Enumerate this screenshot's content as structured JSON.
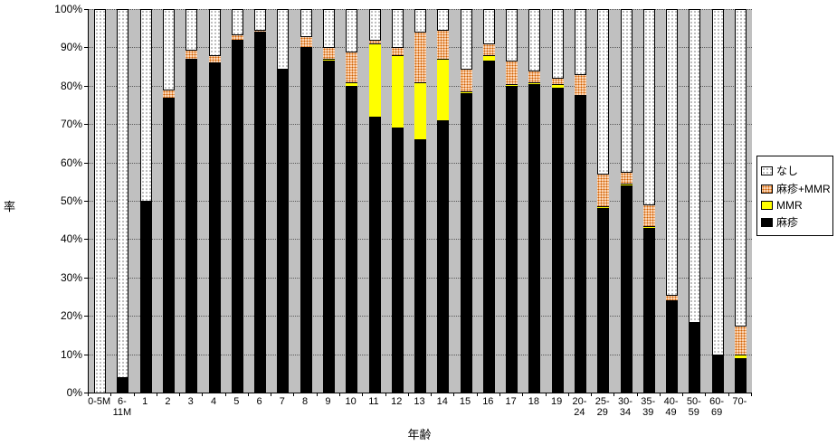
{
  "chart_data": {
    "type": "bar",
    "stacked": true,
    "percent": true,
    "xlabel": "年齢",
    "ylabel": "率",
    "ylim": [
      0,
      100
    ],
    "ytick_step": 10,
    "ytick_labels": [
      "0%",
      "10%",
      "20%",
      "30%",
      "40%",
      "50%",
      "60%",
      "70%",
      "80%",
      "90%",
      "100%"
    ],
    "grid": true,
    "plot_background": "#c0c0c0",
    "categories": [
      "0-5M",
      "6-11M",
      "1",
      "2",
      "3",
      "4",
      "5",
      "6",
      "7",
      "8",
      "9",
      "10",
      "11",
      "12",
      "13",
      "14",
      "15",
      "16",
      "17",
      "18",
      "19",
      "20-24",
      "25-29",
      "30-34",
      "35-39",
      "40-49",
      "50-59",
      "60-69",
      "70-"
    ],
    "category_label_lines": [
      [
        "0-5M"
      ],
      [
        "6-",
        "11M"
      ],
      [
        "1"
      ],
      [
        "2"
      ],
      [
        "3"
      ],
      [
        "4"
      ],
      [
        "5"
      ],
      [
        "6"
      ],
      [
        "7"
      ],
      [
        "8"
      ],
      [
        "9"
      ],
      [
        "10"
      ],
      [
        "11"
      ],
      [
        "12"
      ],
      [
        "13"
      ],
      [
        "14"
      ],
      [
        "15"
      ],
      [
        "16"
      ],
      [
        "17"
      ],
      [
        "18"
      ],
      [
        "19"
      ],
      [
        "20-",
        "24"
      ],
      [
        "25-",
        "29"
      ],
      [
        "30-",
        "34"
      ],
      [
        "35-",
        "39"
      ],
      [
        "40-",
        "49"
      ],
      [
        "50-",
        "59"
      ],
      [
        "60-",
        "69"
      ],
      [
        "70-"
      ]
    ],
    "series": [
      {
        "name": "麻疹",
        "color": "#000000",
        "pattern": "solid",
        "values": [
          0,
          4,
          50,
          77,
          87,
          86,
          92,
          94,
          84.5,
          90,
          86.5,
          80,
          72,
          69,
          66,
          71,
          78,
          86.5,
          80,
          80.5,
          79.5,
          77.5,
          48,
          54,
          43,
          24,
          18.5,
          10,
          9
        ]
      },
      {
        "name": "MMR",
        "color": "#ffff00",
        "pattern": "solid",
        "values": [
          0,
          0,
          0,
          0,
          0,
          0,
          0,
          0,
          0,
          0,
          0.5,
          1,
          19,
          19,
          15,
          16,
          0.5,
          1.5,
          0.5,
          0.5,
          1,
          0,
          0.5,
          0.5,
          0.5,
          0,
          0,
          0,
          1
        ]
      },
      {
        "name": "麻疹+MMR",
        "color": "#e8a060",
        "pattern": "dots-orange",
        "values": [
          0,
          0,
          0,
          2,
          2.5,
          2,
          1.5,
          0.5,
          0,
          3,
          3,
          8,
          1,
          2,
          13,
          7.5,
          6,
          3,
          6,
          3,
          1.5,
          5.5,
          8.5,
          3,
          5.5,
          1.5,
          0,
          0,
          7.5
        ]
      },
      {
        "name": "なし",
        "color": "#ffffff",
        "pattern": "dots-black",
        "values": [
          100,
          96,
          50,
          21,
          10.5,
          12,
          6.5,
          5.5,
          15.5,
          7,
          10,
          11,
          8,
          10,
          6,
          5.5,
          15.5,
          9,
          13.5,
          16,
          18,
          17,
          43,
          42.5,
          51,
          74.5,
          81.5,
          90,
          82.5
        ]
      }
    ],
    "legend": {
      "position": "right",
      "entries": [
        "なし",
        "麻疹+MMR",
        "MMR",
        "麻疹"
      ]
    }
  }
}
